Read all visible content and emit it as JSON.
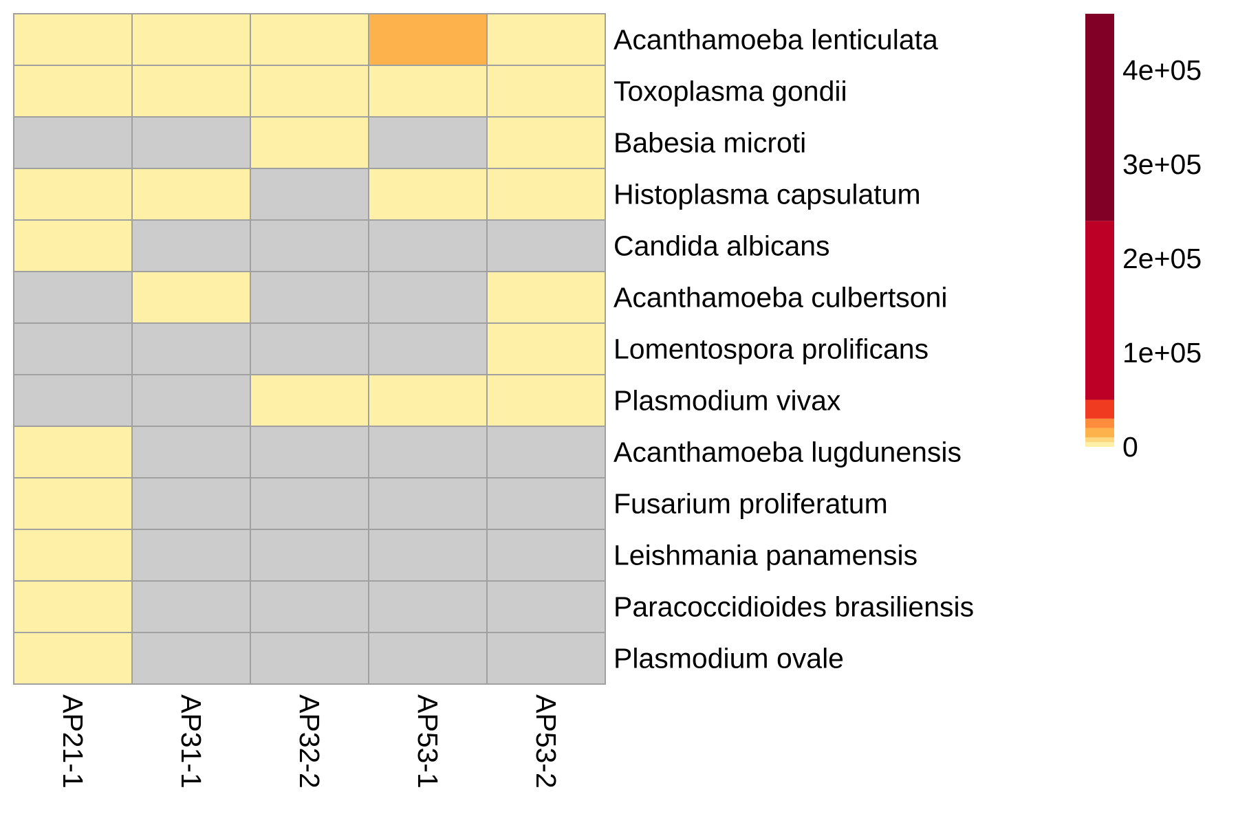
{
  "chart_data": {
    "type": "heatmap",
    "title": "",
    "xlabel": "",
    "ylabel": "",
    "columns": [
      "AP21-1",
      "AP31-1",
      "AP32-2",
      "AP53-1",
      "AP53-2"
    ],
    "rows": [
      "Acanthamoeba lenticulata",
      "Toxoplasma gondii",
      "Babesia microti",
      "Histoplasma capsulatum",
      "Candida albicans",
      "Acanthamoeba culbertsoni",
      "Lomentospora prolificans",
      "Plasmodium vivax",
      "Acanthamoeba lugdunensis",
      "Fusarium proliferatum",
      "Leishmania panamensis",
      "Paracoccidioides brasiliensis",
      "Plasmodium ovale"
    ],
    "values": [
      [
        300,
        3000,
        3000,
        12000,
        3000
      ],
      [
        3000,
        300,
        3000,
        300,
        3000
      ],
      [
        null,
        null,
        300,
        null,
        3000
      ],
      [
        300,
        300,
        null,
        300,
        3000
      ],
      [
        300,
        null,
        null,
        null,
        null
      ],
      [
        null,
        300,
        null,
        null,
        3000
      ],
      [
        null,
        null,
        null,
        null,
        300
      ],
      [
        null,
        null,
        300,
        300,
        300
      ],
      [
        300,
        null,
        null,
        null,
        null
      ],
      [
        300,
        null,
        null,
        null,
        null
      ],
      [
        300,
        null,
        null,
        null,
        null
      ],
      [
        300,
        null,
        null,
        null,
        null
      ],
      [
        300,
        null,
        null,
        null,
        null
      ]
    ],
    "missing_color": "#cccccc",
    "cell_border_color": "#a0a0a0",
    "value_range": [
      0,
      460000
    ],
    "legend": {
      "position": "right",
      "ticks": [
        {
          "value": 0,
          "label": "0"
        },
        {
          "value": 100000,
          "label": "1e+05"
        },
        {
          "value": 200000,
          "label": "2e+05"
        },
        {
          "value": 300000,
          "label": "3e+05"
        },
        {
          "value": 400000,
          "label": "4e+05"
        }
      ],
      "color_steps": [
        {
          "from": 0,
          "to": 5000,
          "color": "#fff0a8"
        },
        {
          "from": 5000,
          "to": 10000,
          "color": "#fed87f"
        },
        {
          "from": 10000,
          "to": 20000,
          "color": "#feb24c"
        },
        {
          "from": 20000,
          "to": 30000,
          "color": "#fd8d3c"
        },
        {
          "from": 30000,
          "to": 50000,
          "color": "#f03b20"
        },
        {
          "from": 50000,
          "to": 240000,
          "color": "#bd0026"
        },
        {
          "from": 240000,
          "to": 460000,
          "color": "#800026"
        }
      ]
    }
  }
}
